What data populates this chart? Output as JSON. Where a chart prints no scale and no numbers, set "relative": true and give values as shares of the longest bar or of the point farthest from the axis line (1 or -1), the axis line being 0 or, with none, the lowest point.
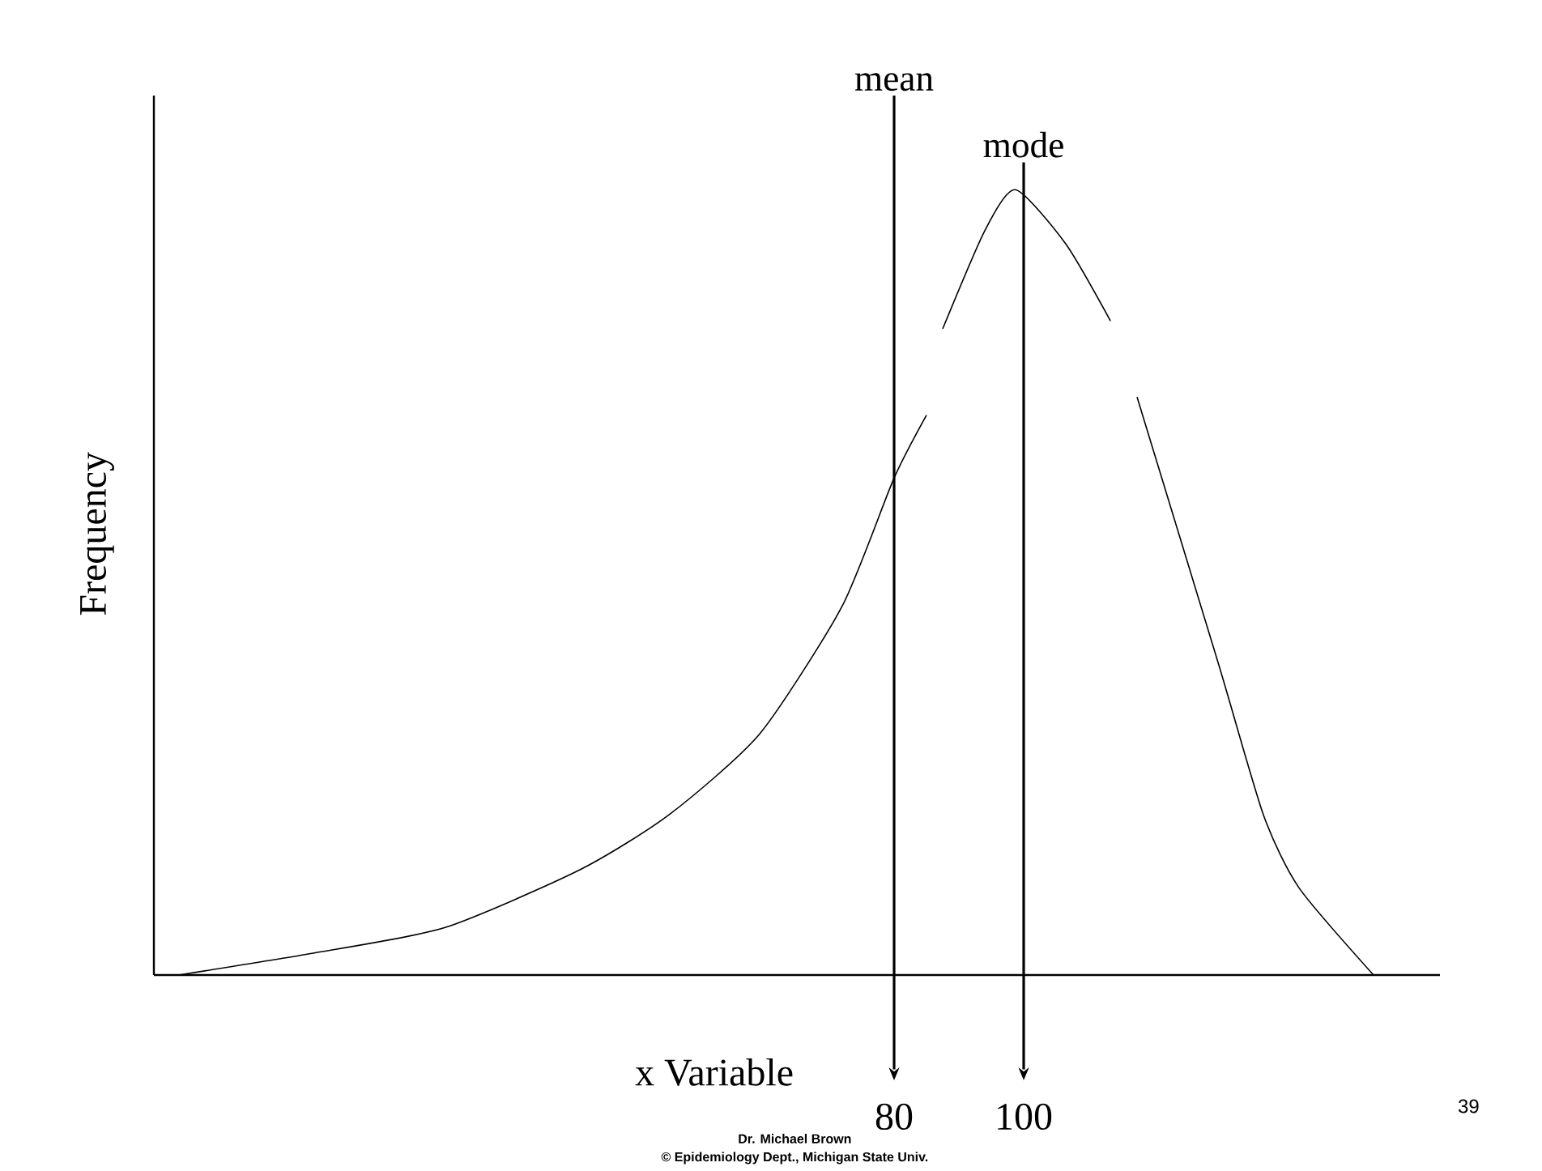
{
  "chart_data": {
    "type": "line",
    "relative": true,
    "xlabel": "x Variable",
    "ylabel": "Frequency",
    "xlim": [
      -34.25,
      164.25
    ],
    "xticks": [
      80,
      100
    ],
    "x": [
      -30.4,
      -10.25,
      10.5,
      31.5,
      45.25,
      59.25,
      72,
      80,
      85,
      86,
      87.5,
      94,
      98.75,
      106.5,
      113.4,
      115,
      117.5,
      130,
      137,
      142.5,
      154
    ],
    "series": [
      {
        "color": "#000000",
        "values": [
          0,
          0.027,
          0.06,
          0.134,
          0.204,
          0.307,
          0.47,
          0.633,
          0.713,
          null,
          0.823,
          0.948,
          1,
          0.931,
          0.833,
          null,
          0.736,
          0.398,
          0.204,
          0.111,
          0
        ]
      }
    ],
    "ref_lines": [
      {
        "axis": "x",
        "value": 80,
        "label": "mean"
      },
      {
        "axis": "x",
        "value": 100,
        "label": "mode"
      }
    ],
    "annotations": [
      "Dr. Michael Brown",
      "© Epidemiology Dept., Michigan State Univ.",
      "39"
    ]
  }
}
